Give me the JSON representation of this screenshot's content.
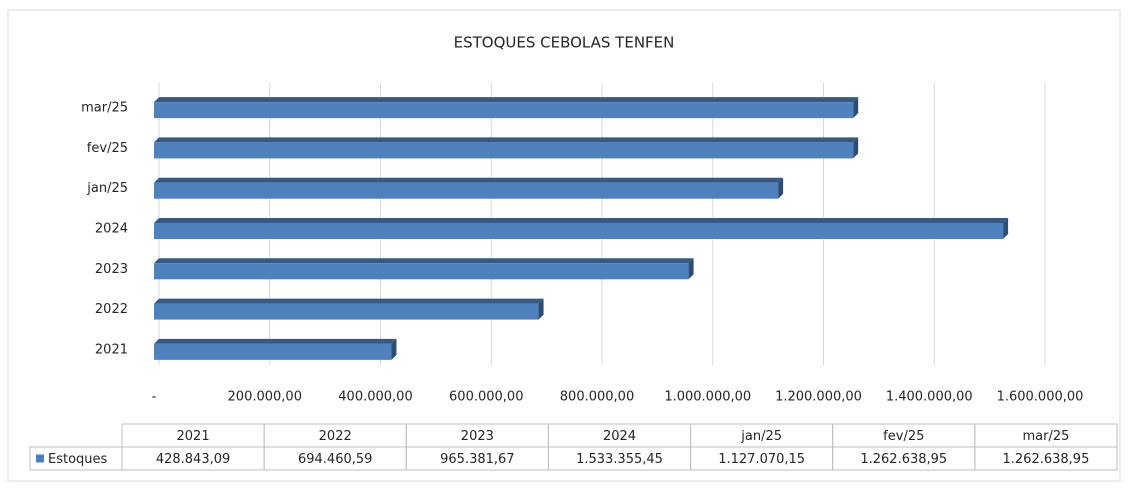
{
  "chart_data": {
    "type": "bar",
    "orientation": "horizontal",
    "title": "ESTOQUES CEBOLAS TENFEN",
    "categories": [
      "2021",
      "2022",
      "2023",
      "2024",
      "jan/25",
      "fev/25",
      "mar/25"
    ],
    "series": [
      {
        "name": "Estoques",
        "color": "#4f81bd",
        "values": [
          428843.09,
          694460.59,
          965381.67,
          1533355.45,
          1127070.15,
          1262638.95,
          1262638.95
        ],
        "value_labels": [
          "428.843,09",
          "694.460,59",
          "965.381,67",
          "1.533.355,45",
          "1.127.070,15",
          "1.262.638,95",
          "1.262.638,95"
        ]
      }
    ],
    "xlim": [
      0,
      1600000
    ],
    "xticks": [
      {
        "value": 0,
        "label": "-"
      },
      {
        "value": 200000,
        "label": "200.000,00"
      },
      {
        "value": 400000,
        "label": "400.000,00"
      },
      {
        "value": 600000,
        "label": "600.000,00"
      },
      {
        "value": 800000,
        "label": "800.000,00"
      },
      {
        "value": 1000000,
        "label": "1.000.000,00"
      },
      {
        "value": 1200000,
        "label": "1.200.000,00"
      },
      {
        "value": 1400000,
        "label": "1.400.000,00"
      },
      {
        "value": 1600000,
        "label": "1.600.000,00"
      }
    ],
    "grid": true,
    "data_table": true
  }
}
